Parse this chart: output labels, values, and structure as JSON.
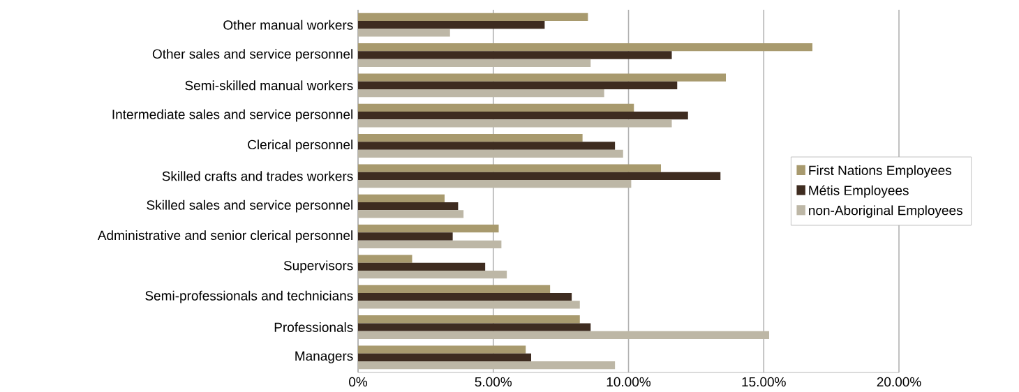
{
  "chart_data": {
    "type": "bar",
    "orientation": "horizontal",
    "categories": [
      "Other manual workers",
      "Other sales and service personnel",
      "Semi-skilled manual workers",
      "Intermediate sales and service personnel",
      "Clerical personnel",
      "Skilled crafts and trades workers",
      "Skilled sales and service personnel",
      "Administrative and senior clerical personnel",
      "Supervisors",
      "Semi-professionals and technicians",
      "Professionals",
      "Managers"
    ],
    "series": [
      {
        "name": "First Nations Employees",
        "color": "#a89a6e",
        "values": [
          8.5,
          16.8,
          13.6,
          10.2,
          8.3,
          11.2,
          3.2,
          5.2,
          2.0,
          7.1,
          8.2,
          6.2
        ]
      },
      {
        "name": "Métis Employees",
        "color": "#3e2c20",
        "values": [
          6.9,
          11.6,
          11.8,
          12.2,
          9.5,
          13.4,
          3.7,
          3.5,
          4.7,
          7.9,
          8.6,
          6.4
        ]
      },
      {
        "name": "non-Aboriginal Employees",
        "color": "#bdb7a6",
        "values": [
          3.4,
          8.6,
          9.1,
          11.6,
          9.8,
          10.1,
          3.9,
          5.3,
          5.5,
          8.2,
          15.2,
          9.5
        ]
      }
    ],
    "xlim": [
      0,
      20
    ],
    "xticks": [
      {
        "value": 0,
        "label": "0%"
      },
      {
        "value": 5,
        "label": "5.00%"
      },
      {
        "value": 10,
        "label": "10.00%"
      },
      {
        "value": 15,
        "label": "15.00%"
      },
      {
        "value": 20,
        "label": "20.00%"
      }
    ],
    "grid": "x",
    "legend": "right"
  }
}
